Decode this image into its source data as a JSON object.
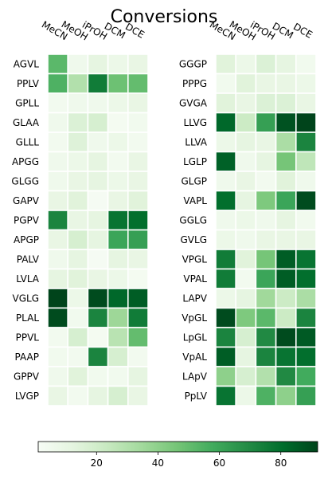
{
  "chart_data": {
    "type": "heatmap",
    "title": "Conversions",
    "columns": [
      "MeCN",
      "MeOH",
      "iPrOH",
      "DCM",
      "DCE"
    ],
    "colormap": "Greens",
    "colorbar": {
      "min": 1,
      "max": 92,
      "ticks": [
        20,
        40,
        60,
        80
      ],
      "orientation": "horizontal",
      "placement": "bottom"
    },
    "panels": [
      {
        "rows": [
          "AGVL",
          "PPLV",
          "GPLL",
          "GLAA",
          "GLLL",
          "APGG",
          "GLGG",
          "GAPV",
          "PGPV",
          "APGP",
          "PALV",
          "LVLA",
          "VGLG",
          "PLAL",
          "PPVL",
          "PAAP",
          "GPPV",
          "LVGP"
        ],
        "values": [
          [
            52,
            6,
            12,
            8,
            10
          ],
          [
            55,
            30,
            75,
            48,
            50
          ],
          [
            4,
            6,
            6,
            8,
            10
          ],
          [
            6,
            16,
            18,
            3,
            5
          ],
          [
            4,
            15,
            6,
            8,
            4
          ],
          [
            6,
            8,
            12,
            4,
            10
          ],
          [
            6,
            10,
            12,
            8,
            10
          ],
          [
            10,
            14,
            2,
            10,
            14
          ],
          [
            72,
            10,
            12,
            78,
            80
          ],
          [
            10,
            18,
            12,
            60,
            62
          ],
          [
            6,
            12,
            2,
            12,
            10
          ],
          [
            12,
            14,
            10,
            8,
            3
          ],
          [
            92,
            8,
            90,
            82,
            85
          ],
          [
            90,
            5,
            72,
            36,
            75
          ],
          [
            4,
            18,
            3,
            28,
            50
          ],
          [
            5,
            4,
            72,
            18,
            4
          ],
          [
            6,
            14,
            5,
            5,
            12
          ],
          [
            10,
            4,
            12,
            18,
            10
          ]
        ]
      },
      {
        "rows": [
          "GGGP",
          "PPPG",
          "GVGA",
          "LLVG",
          "LLVA",
          "LGLP",
          "GLGP",
          "VAPL",
          "GGLG",
          "GVLG",
          "VPGL",
          "VPAL",
          "LAPV",
          "VpGL",
          "LpGL",
          "VpAL",
          "LApV",
          "PpLV"
        ],
        "values": [
          [
            14,
            8,
            16,
            12,
            5
          ],
          [
            5,
            14,
            10,
            10,
            8
          ],
          [
            14,
            10,
            16,
            16,
            10
          ],
          [
            82,
            22,
            62,
            88,
            92
          ],
          [
            8,
            12,
            10,
            32,
            72
          ],
          [
            84,
            6,
            12,
            46,
            26
          ],
          [
            6,
            10,
            4,
            14,
            6
          ],
          [
            80,
            12,
            44,
            60,
            90
          ],
          [
            6,
            8,
            6,
            12,
            5
          ],
          [
            8,
            6,
            10,
            10,
            10
          ],
          [
            75,
            14,
            46,
            85,
            78
          ],
          [
            75,
            4,
            60,
            85,
            80
          ],
          [
            8,
            12,
            35,
            22,
            32
          ],
          [
            90,
            44,
            52,
            22,
            72
          ],
          [
            72,
            18,
            70,
            90,
            86
          ],
          [
            85,
            12,
            72,
            78,
            80
          ],
          [
            40,
            18,
            30,
            70,
            58
          ],
          [
            78,
            8,
            55,
            40,
            62
          ]
        ]
      }
    ]
  }
}
